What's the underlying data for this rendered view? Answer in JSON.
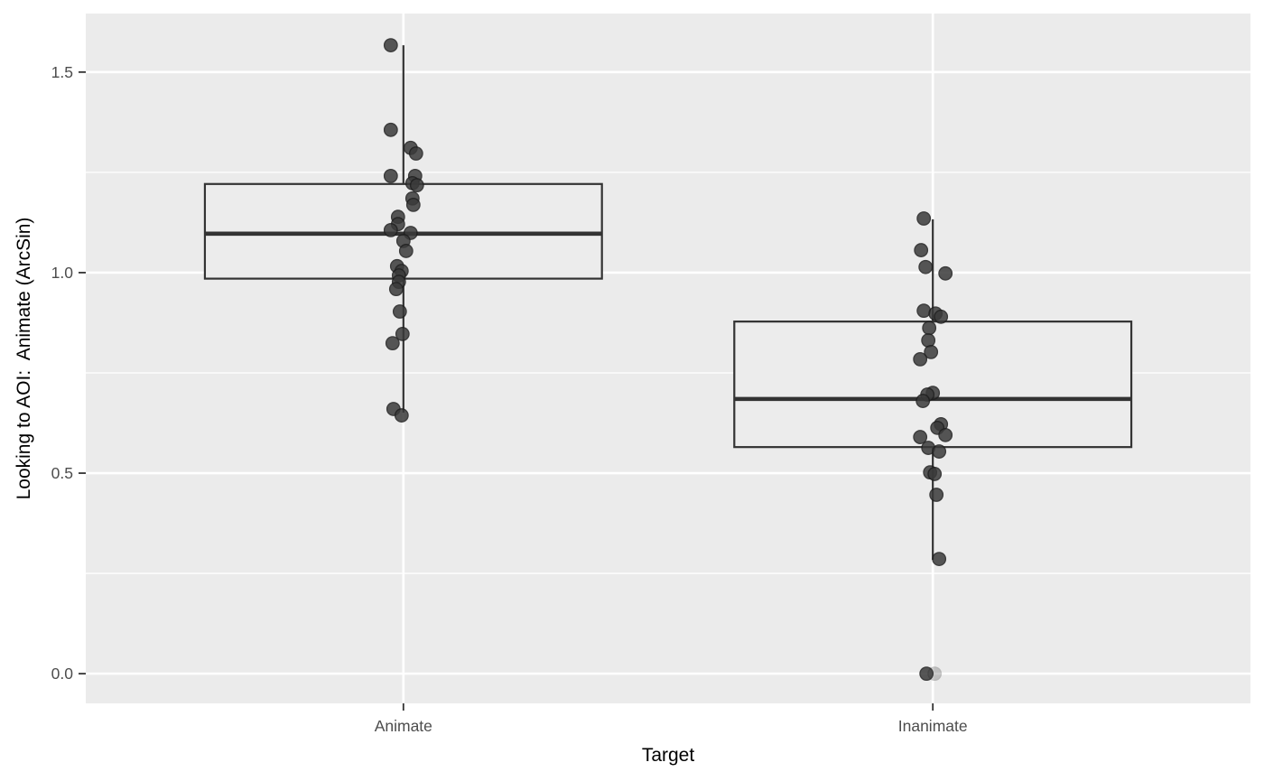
{
  "chart_data": {
    "type": "boxplot",
    "title": "",
    "xlabel": "Target",
    "ylabel": "Looking to AOI:  Animate (ArcSin)",
    "categories": [
      "Animate",
      "Inanimate"
    ],
    "y_tick_values": [
      0.0,
      0.5,
      1.0,
      1.5
    ],
    "y_tick_labels": [
      "0.0",
      "0.5",
      "1.0",
      "1.5"
    ],
    "y_minor_ticks": [
      0.25,
      0.75,
      1.25
    ],
    "ylim": [
      -0.074,
      1.646
    ],
    "grid": true,
    "legend": false,
    "boxes": [
      {
        "category": "Animate",
        "whisker_low": 0.651,
        "q1": 0.985,
        "median": 1.097,
        "q3": 1.221,
        "whisker_high": 1.567
      },
      {
        "category": "Inanimate",
        "whisker_low": 0.284,
        "q1": 0.565,
        "median": 0.685,
        "q3": 0.878,
        "whisker_high": 1.133
      }
    ],
    "points": [
      {
        "cat": 0,
        "value": 1.567,
        "jitter": -14
      },
      {
        "cat": 0,
        "value": 1.356,
        "jitter": -14
      },
      {
        "cat": 0,
        "value": 1.311,
        "jitter": 8
      },
      {
        "cat": 0,
        "value": 1.297,
        "jitter": 14
      },
      {
        "cat": 0,
        "value": 1.241,
        "jitter": -14
      },
      {
        "cat": 0,
        "value": 1.241,
        "jitter": 13
      },
      {
        "cat": 0,
        "value": 1.223,
        "jitter": 10
      },
      {
        "cat": 0,
        "value": 1.218,
        "jitter": 15
      },
      {
        "cat": 0,
        "value": 1.185,
        "jitter": 10
      },
      {
        "cat": 0,
        "value": 1.169,
        "jitter": 11
      },
      {
        "cat": 0,
        "value": 1.139,
        "jitter": -6
      },
      {
        "cat": 0,
        "value": 1.121,
        "jitter": -6
      },
      {
        "cat": 0,
        "value": 1.106,
        "jitter": -14
      },
      {
        "cat": 0,
        "value": 1.099,
        "jitter": 8
      },
      {
        "cat": 0,
        "value": 1.079,
        "jitter": 0
      },
      {
        "cat": 0,
        "value": 1.054,
        "jitter": 3
      },
      {
        "cat": 0,
        "value": 1.016,
        "jitter": -7
      },
      {
        "cat": 0,
        "value": 1.004,
        "jitter": -2
      },
      {
        "cat": 0,
        "value": 0.993,
        "jitter": -5
      },
      {
        "cat": 0,
        "value": 0.977,
        "jitter": -5
      },
      {
        "cat": 0,
        "value": 0.959,
        "jitter": -8
      },
      {
        "cat": 0,
        "value": 0.903,
        "jitter": -4
      },
      {
        "cat": 0,
        "value": 0.847,
        "jitter": -1
      },
      {
        "cat": 0,
        "value": 0.824,
        "jitter": -12
      },
      {
        "cat": 0,
        "value": 0.66,
        "jitter": -11
      },
      {
        "cat": 0,
        "value": 0.644,
        "jitter": -2
      },
      {
        "cat": 1,
        "value": 1.135,
        "jitter": -10
      },
      {
        "cat": 1,
        "value": 1.056,
        "jitter": -13
      },
      {
        "cat": 1,
        "value": 1.014,
        "jitter": -8
      },
      {
        "cat": 1,
        "value": 0.998,
        "jitter": 14
      },
      {
        "cat": 1,
        "value": 0.905,
        "jitter": -10
      },
      {
        "cat": 1,
        "value": 0.898,
        "jitter": 3
      },
      {
        "cat": 1,
        "value": 0.89,
        "jitter": 9
      },
      {
        "cat": 1,
        "value": 0.862,
        "jitter": -4
      },
      {
        "cat": 1,
        "value": 0.831,
        "jitter": -5
      },
      {
        "cat": 1,
        "value": 0.802,
        "jitter": -2
      },
      {
        "cat": 1,
        "value": 0.784,
        "jitter": -14
      },
      {
        "cat": 1,
        "value": 0.7,
        "jitter": 0
      },
      {
        "cat": 1,
        "value": 0.696,
        "jitter": -6
      },
      {
        "cat": 1,
        "value": 0.68,
        "jitter": -11
      },
      {
        "cat": 1,
        "value": 0.622,
        "jitter": 9
      },
      {
        "cat": 1,
        "value": 0.613,
        "jitter": 5
      },
      {
        "cat": 1,
        "value": 0.595,
        "jitter": 14
      },
      {
        "cat": 1,
        "value": 0.59,
        "jitter": -14
      },
      {
        "cat": 1,
        "value": 0.563,
        "jitter": -5
      },
      {
        "cat": 1,
        "value": 0.554,
        "jitter": 7
      },
      {
        "cat": 1,
        "value": 0.502,
        "jitter": -3
      },
      {
        "cat": 1,
        "value": 0.498,
        "jitter": 2
      },
      {
        "cat": 1,
        "value": 0.446,
        "jitter": 4
      },
      {
        "cat": 1,
        "value": 0.286,
        "jitter": 7
      },
      {
        "cat": 1,
        "value": 0.0,
        "jitter": -7
      },
      {
        "cat": 1,
        "value": 0.0,
        "jitter": 2,
        "faint": true
      }
    ],
    "colors": {
      "panel_bg": "#EBEBEB",
      "grid": "#FFFFFF",
      "box_stroke": "#333333",
      "box_fill": "#ECECEC",
      "median": "#333333",
      "point_fill": "#3A3A3A",
      "point_stroke": "#1E1E1E",
      "tick_text": "#4D4D4D",
      "axis_title": "#000000",
      "tick_mark": "#333333"
    }
  }
}
